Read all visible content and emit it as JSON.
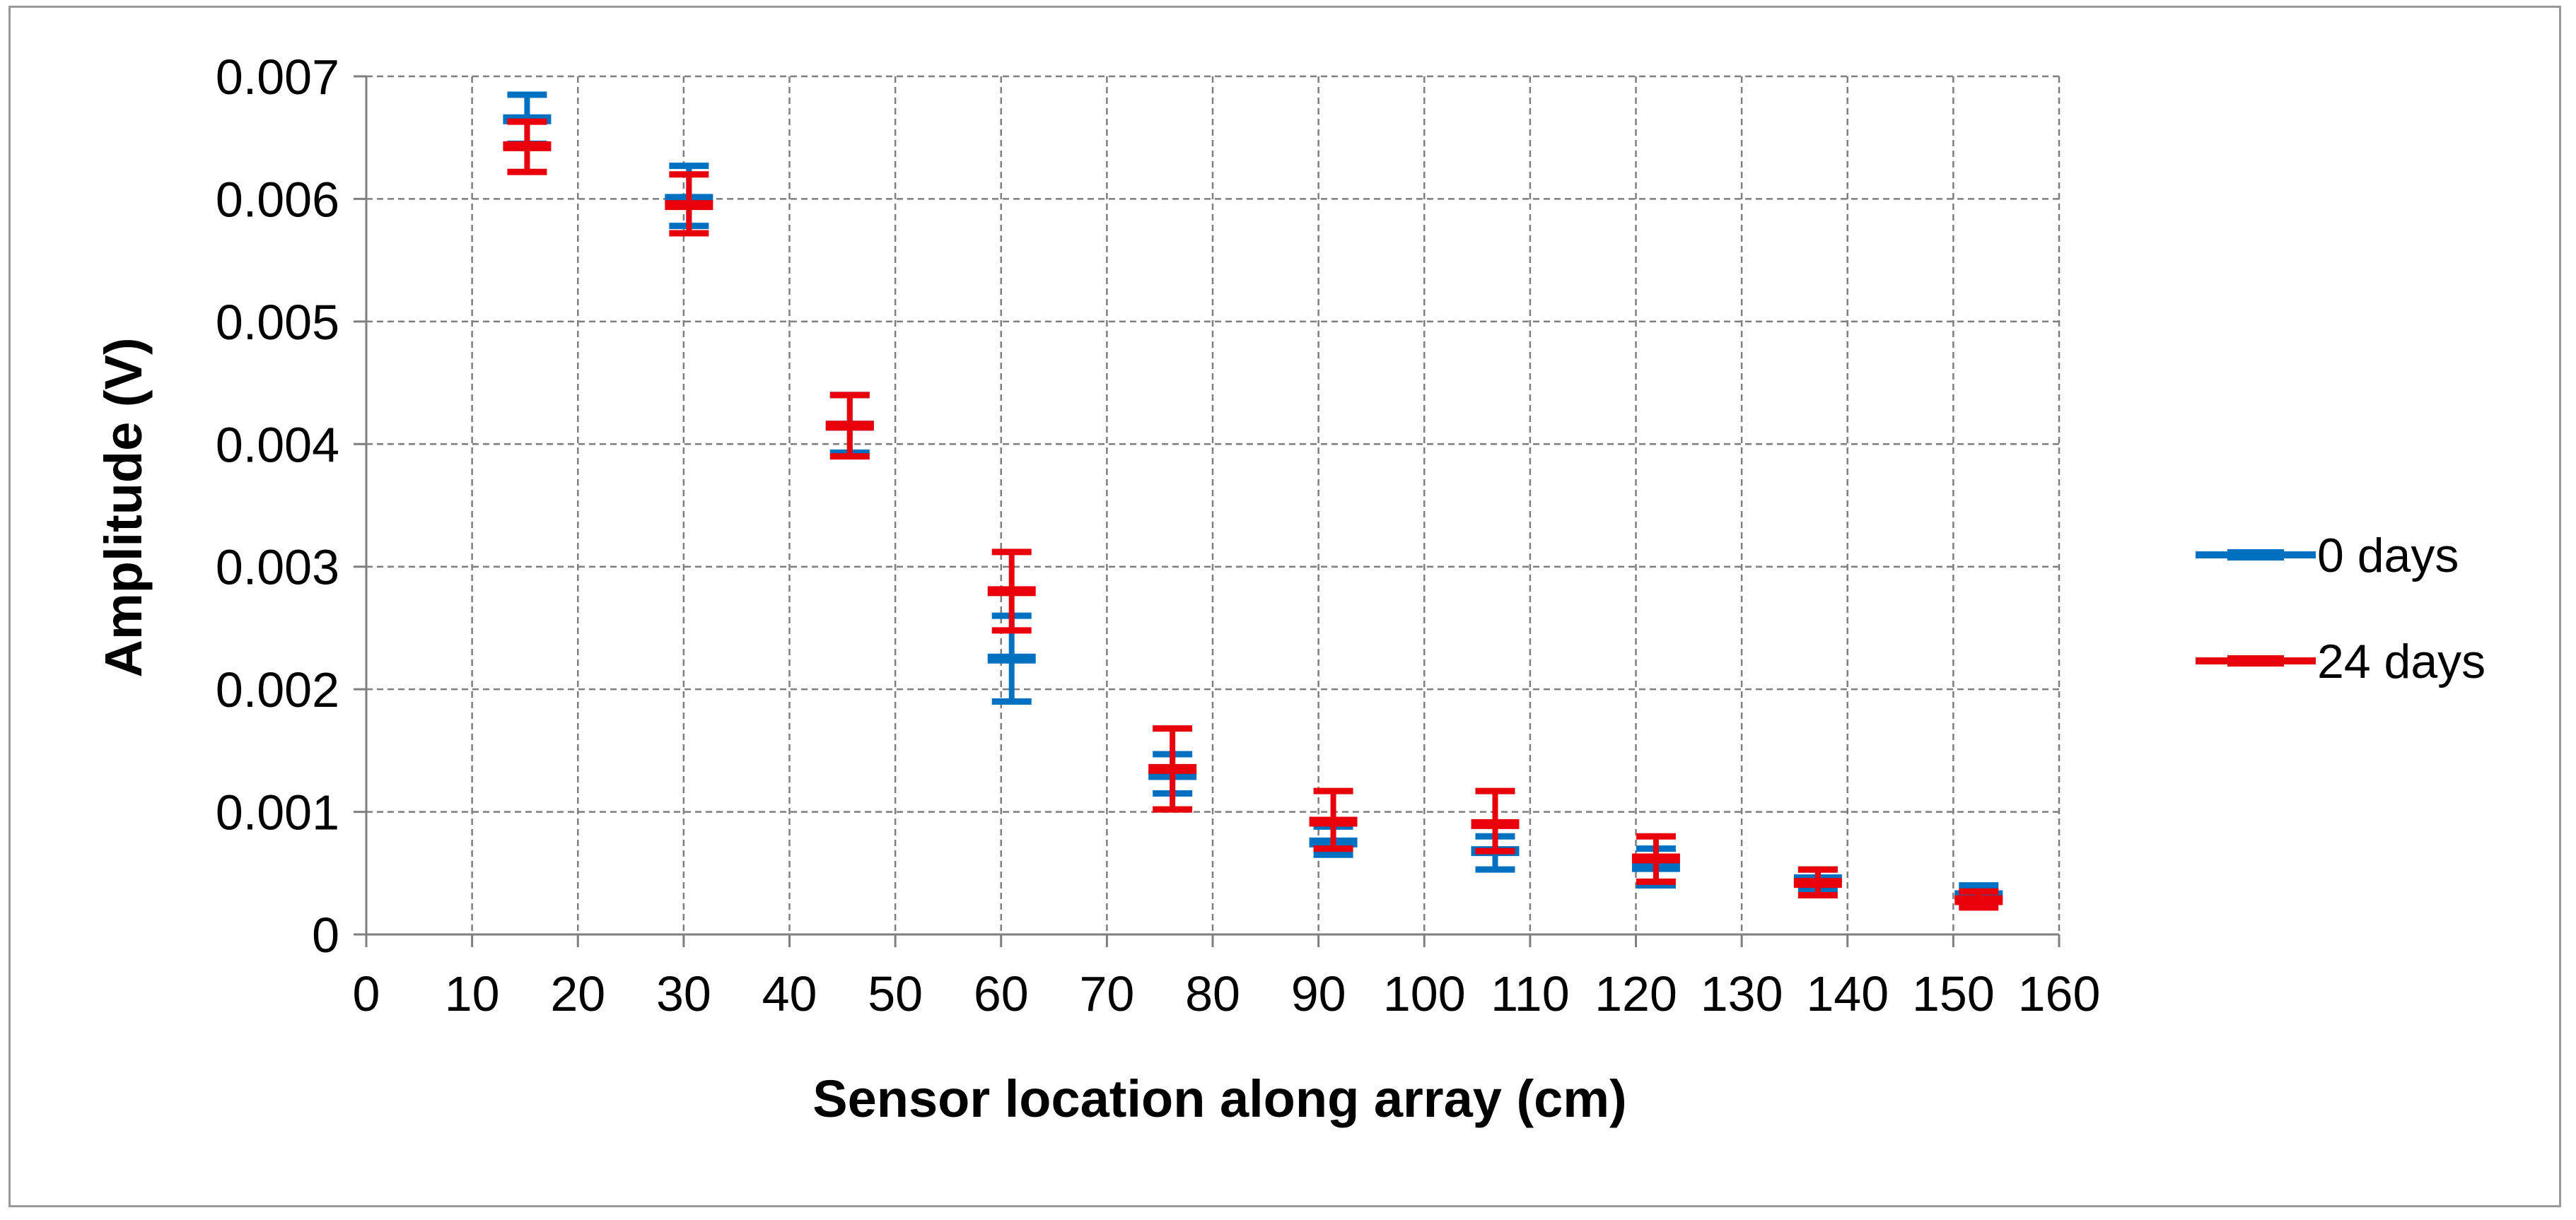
{
  "chart_data": {
    "type": "scatter",
    "title": "",
    "xlabel": "Sensor location along array (cm)",
    "ylabel": "Amplitude (V)",
    "xlim": [
      0,
      160
    ],
    "ylim": [
      0,
      0.007
    ],
    "x_ticks": [
      "0",
      "10",
      "20",
      "30",
      "40",
      "50",
      "60",
      "70",
      "80",
      "90",
      "100",
      "110",
      "120",
      "130",
      "140",
      "150",
      "160"
    ],
    "y_ticks": [
      "0",
      "0.001",
      "0.002",
      "0.003",
      "0.004",
      "0.005",
      "0.006",
      "0.007"
    ],
    "grid": true,
    "legend_position": "right",
    "series": [
      {
        "name": "0 days",
        "color": "#0070c0",
        "points": [
          {
            "x": 15.2,
            "y": 0.00665,
            "err_low": 0.00645,
            "err_high": 0.00685
          },
          {
            "x": 30.5,
            "y": 0.006,
            "err_low": 0.00578,
            "err_high": 0.00627
          },
          {
            "x": 45.7,
            "y": 0.00415,
            "err_low": 0.00393,
            "err_high": 0.0044
          },
          {
            "x": 61.0,
            "y": 0.00225,
            "err_low": 0.0019,
            "err_high": 0.0026
          },
          {
            "x": 76.2,
            "y": 0.0013,
            "err_low": 0.00115,
            "err_high": 0.00147
          },
          {
            "x": 91.4,
            "y": 0.00075,
            "err_low": 0.00065,
            "err_high": 0.00088
          },
          {
            "x": 106.7,
            "y": 0.00068,
            "err_low": 0.00053,
            "err_high": 0.0008
          },
          {
            "x": 121.9,
            "y": 0.00055,
            "err_low": 0.0004,
            "err_high": 0.0007
          },
          {
            "x": 137.2,
            "y": 0.00045,
            "err_low": 0.00037,
            "err_high": 0.00053
          },
          {
            "x": 152.4,
            "y": 0.00032,
            "err_low": 0.00027,
            "err_high": 0.0004
          }
        ]
      },
      {
        "name": "24 days",
        "color": "#e8000b",
        "points": [
          {
            "x": 15.2,
            "y": 0.00643,
            "err_low": 0.00622,
            "err_high": 0.00663
          },
          {
            "x": 30.5,
            "y": 0.00595,
            "err_low": 0.00572,
            "err_high": 0.0062
          },
          {
            "x": 45.7,
            "y": 0.00415,
            "err_low": 0.0039,
            "err_high": 0.0044
          },
          {
            "x": 61.0,
            "y": 0.0028,
            "err_low": 0.00248,
            "err_high": 0.00312
          },
          {
            "x": 76.2,
            "y": 0.00135,
            "err_low": 0.00102,
            "err_high": 0.00168
          },
          {
            "x": 91.4,
            "y": 0.00092,
            "err_low": 0.0007,
            "err_high": 0.00117
          },
          {
            "x": 106.7,
            "y": 0.0009,
            "err_low": 0.00068,
            "err_high": 0.00117
          },
          {
            "x": 121.9,
            "y": 0.00062,
            "err_low": 0.00043,
            "err_high": 0.0008
          },
          {
            "x": 137.2,
            "y": 0.00042,
            "err_low": 0.00032,
            "err_high": 0.00053
          },
          {
            "x": 152.4,
            "y": 0.00028,
            "err_low": 0.00022,
            "err_high": 0.00035
          }
        ]
      }
    ]
  }
}
